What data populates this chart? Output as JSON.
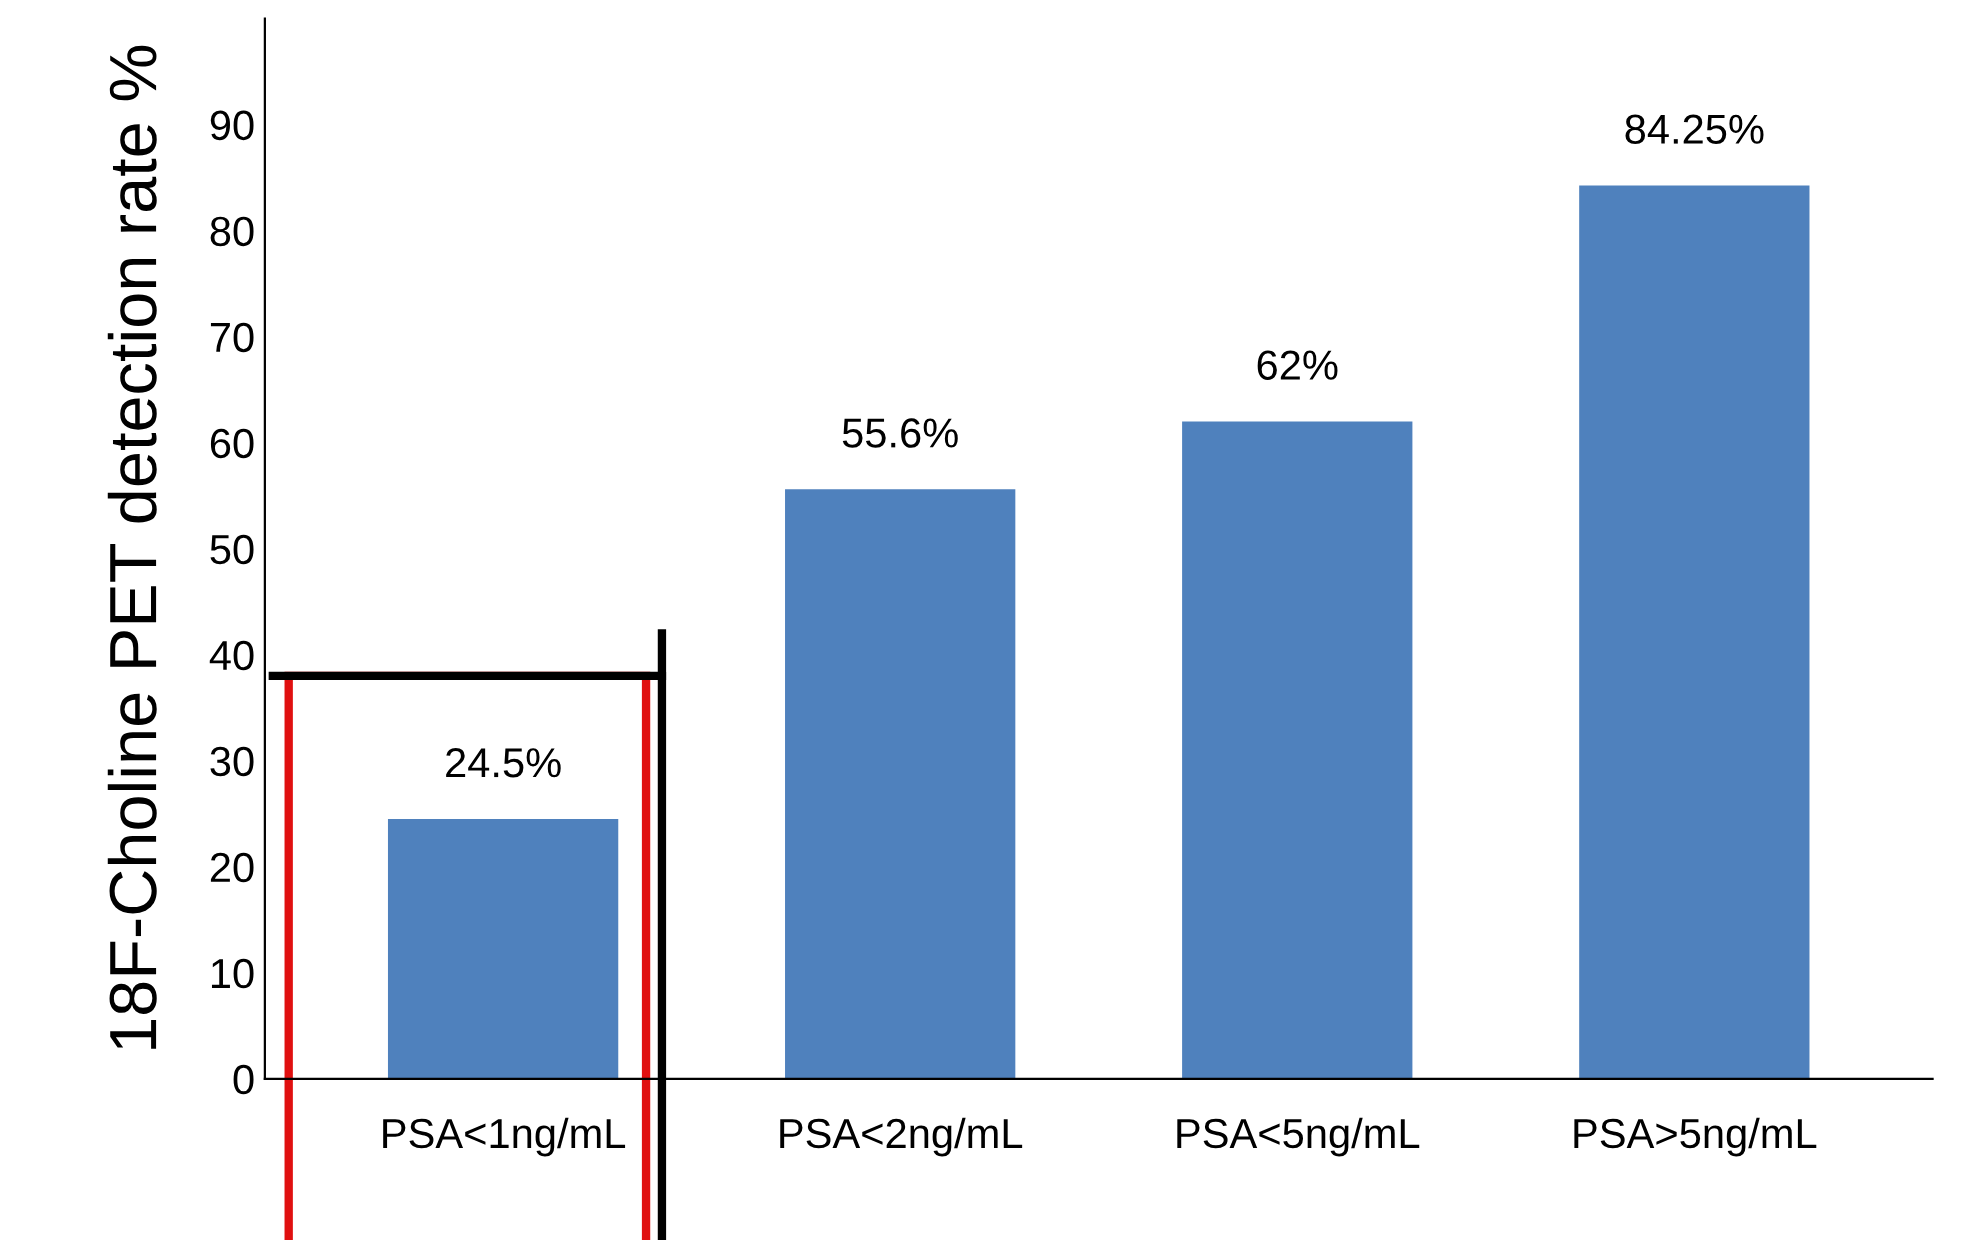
{
  "chart_data": {
    "type": "bar",
    "ylabel": "18F-Choline PET detection rate %",
    "categories": [
      "PSA<1ng/mL",
      "PSA<2ng/mL",
      "PSA<5ng/mL",
      "PSA>5ng/mL"
    ],
    "values": [
      24.5,
      55.6,
      62,
      84.25
    ],
    "value_labels": [
      "24.5%",
      "55.6%",
      "62%",
      "84.25%"
    ],
    "color": "#4f81bd",
    "ylim": [
      0,
      100
    ],
    "yticks": [
      0,
      10,
      20,
      30,
      40,
      50,
      60,
      70,
      80,
      90
    ],
    "grid": false
  }
}
